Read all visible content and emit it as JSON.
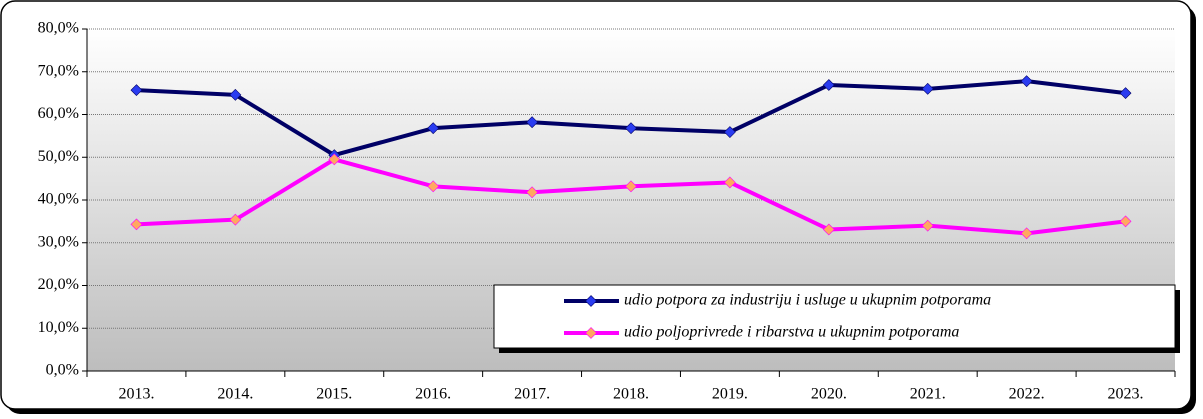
{
  "chart_data": {
    "type": "line",
    "categories": [
      "2013.",
      "2014.",
      "2015.",
      "2016.",
      "2017.",
      "2018.",
      "2019.",
      "2020.",
      "2021.",
      "2022.",
      "2023."
    ],
    "series": [
      {
        "name": "udio potpora za industriju i usluge u ukupnim potporama",
        "color": "#000066",
        "marker_color": "#2a3cf0",
        "values": [
          65.7,
          64.6,
          50.5,
          56.8,
          58.2,
          56.8,
          55.9,
          66.9,
          66.0,
          67.8,
          65.0
        ]
      },
      {
        "name": "udio poljoprivrede i ribarstva u ukupnim potporama",
        "color": "#ff00ff",
        "marker_color": "#ffa860",
        "values": [
          34.3,
          35.4,
          49.5,
          43.2,
          41.8,
          43.2,
          44.1,
          33.1,
          34.0,
          32.2,
          35.0
        ]
      }
    ],
    "ylim": [
      0,
      80
    ],
    "yticks": [
      {
        "value": 0,
        "label": "0,0%"
      },
      {
        "value": 10,
        "label": "10,0%"
      },
      {
        "value": 20,
        "label": "20,0%"
      },
      {
        "value": 30,
        "label": "30,0%"
      },
      {
        "value": 40,
        "label": "40,0%"
      },
      {
        "value": 50,
        "label": "50,0%"
      },
      {
        "value": 60,
        "label": "60,0%"
      },
      {
        "value": 70,
        "label": "70,0%"
      },
      {
        "value": 80,
        "label": "80,0%"
      }
    ],
    "grid": true,
    "legend": "lower right"
  }
}
